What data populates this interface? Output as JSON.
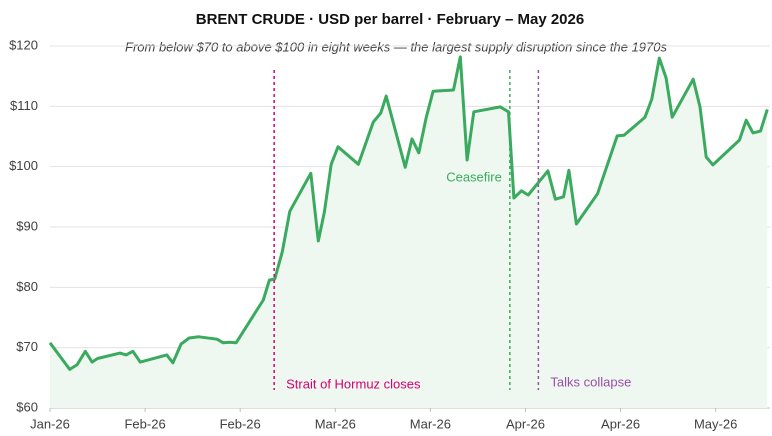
{
  "chart_data": {
    "type": "line",
    "title": "BRENT CRUDE  ·  USD per barrel  ·  February – May 2026",
    "subtitle": "From below $70 to above $100 in eight weeks — the largest supply disruption since the 1970s",
    "x": [
      0,
      2.9,
      4,
      5.2,
      6.2,
      7,
      10.3,
      11.2,
      12.2,
      13.3,
      17.2,
      18.1,
      19.3,
      20.5,
      21.9,
      24.6,
      25.5,
      26.4,
      27.4,
      31.4,
      32.3,
      33.1,
      34.2,
      35.3,
      38.4,
      39.5,
      40.4,
      41.4,
      42.4,
      45.4,
      47.6,
      48.7,
      49.5,
      52.3,
      53.3,
      54.3,
      55.4,
      56.4,
      59.4,
      60.4,
      61.4,
      62.4,
      66.3,
      67.5,
      68.3,
      69.4,
      70.4,
      73.3,
      74.4,
      75.6,
      76.4,
      77.5,
      80.6,
      83.5,
      84.5,
      87.6,
      88.6,
      89.7,
      90.7,
      91.6,
      94.7,
      95.7,
      96.6,
      97.6,
      101.5,
      102.5,
      103.5,
      104.6,
      105.6
    ],
    "series": [
      {
        "name": "Brent crude",
        "color": "#3aaa5e",
        "fill": "#eef8f0",
        "values": [
          70.8,
          66.4,
          67.2,
          69.4,
          67.6,
          68.2,
          69.1,
          68.8,
          69.4,
          67.6,
          68.8,
          67.5,
          70.6,
          71.6,
          71.8,
          71.4,
          70.8,
          70.9,
          70.8,
          77.9,
          81.2,
          81.4,
          85.9,
          92.6,
          98.9,
          87.7,
          92.5,
          100.4,
          103.3,
          100.4,
          107.4,
          108.9,
          111.7,
          99.9,
          104.6,
          102.3,
          108.2,
          112.5,
          112.7,
          118.2,
          101.1,
          109.1,
          109.9,
          109.1,
          94.8,
          96.0,
          95.3,
          99.3,
          94.6,
          95.0,
          99.4,
          90.5,
          95.5,
          105.1,
          105.2,
          108.2,
          111.2,
          118.0,
          114.7,
          108.2,
          114.5,
          109.9,
          101.6,
          100.3,
          104.4,
          107.7,
          105.6,
          105.9,
          109.5
        ]
      }
    ],
    "xlim": [
      0,
      106
    ],
    "xticks": [
      {
        "value": 0,
        "label": "Jan-26"
      },
      {
        "value": 14,
        "label": "Feb-26"
      },
      {
        "value": 28,
        "label": "Feb-26"
      },
      {
        "value": 42,
        "label": "Mar-26"
      },
      {
        "value": 56,
        "label": "Mar-26"
      },
      {
        "value": 70,
        "label": "Apr-26"
      },
      {
        "value": 84,
        "label": "Apr-26"
      },
      {
        "value": 98,
        "label": "May-26"
      }
    ],
    "ylim": [
      60,
      120
    ],
    "yticks": [
      {
        "value": 60,
        "label": "$60"
      },
      {
        "value": 70,
        "label": "$70"
      },
      {
        "value": 80,
        "label": "$80"
      },
      {
        "value": 90,
        "label": "$90"
      },
      {
        "value": 100,
        "label": "$100"
      },
      {
        "value": 110,
        "label": "$110"
      },
      {
        "value": 120,
        "label": "$120"
      }
    ],
    "grid": true,
    "annotations": [
      {
        "label": "Strait of Hormuz closes",
        "x": 33,
        "color": "#d6006e",
        "side": "right"
      },
      {
        "label": "Ceasefire",
        "x": 67.7,
        "color": "#3aaa5e",
        "side": "left"
      },
      {
        "label": "Talks collapse",
        "x": 71.9,
        "color": "#9b4ea8",
        "side": "right"
      }
    ]
  }
}
